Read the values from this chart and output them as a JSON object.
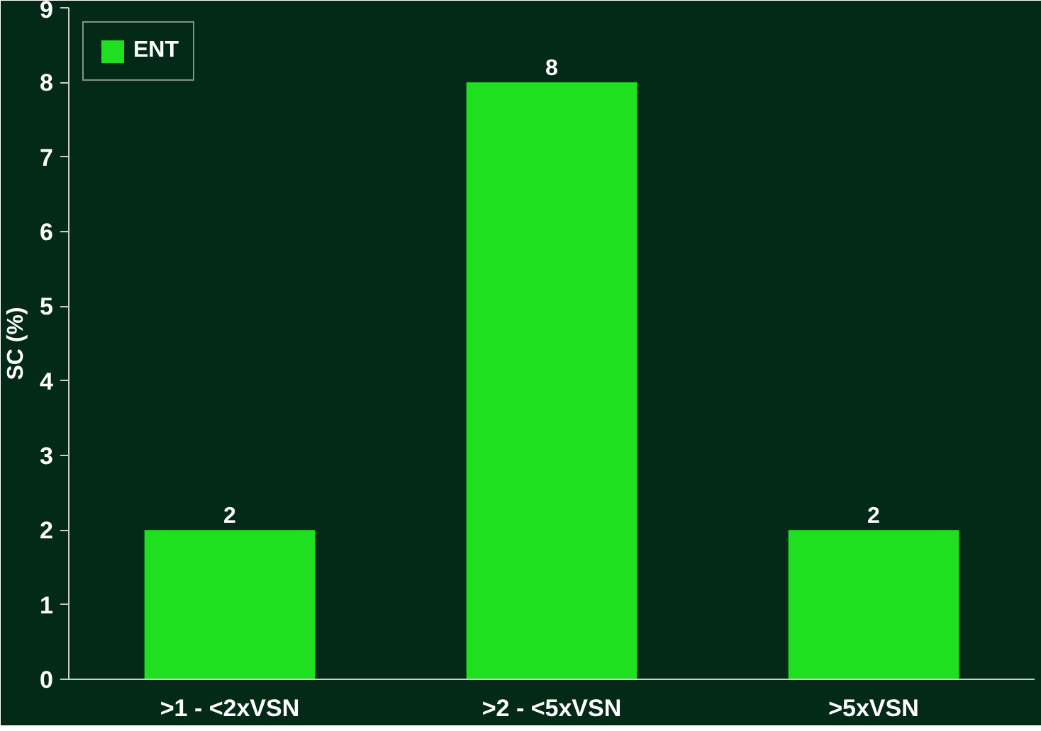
{
  "chart_data": {
    "type": "bar",
    "ylabel": "SC (%)",
    "categories": [
      ">1 - <2xVSN",
      ">2 - <5xVSN",
      ">5xVSN"
    ],
    "series": [
      {
        "name": "ENT",
        "color": "#1ee01e",
        "values": [
          2,
          8,
          2
        ]
      }
    ],
    "ylim": [
      0,
      9
    ],
    "yticks": [
      0,
      1,
      2,
      3,
      4,
      5,
      6,
      7,
      8,
      9
    ],
    "data_labels": true,
    "legend": "top left",
    "grid": false
  }
}
